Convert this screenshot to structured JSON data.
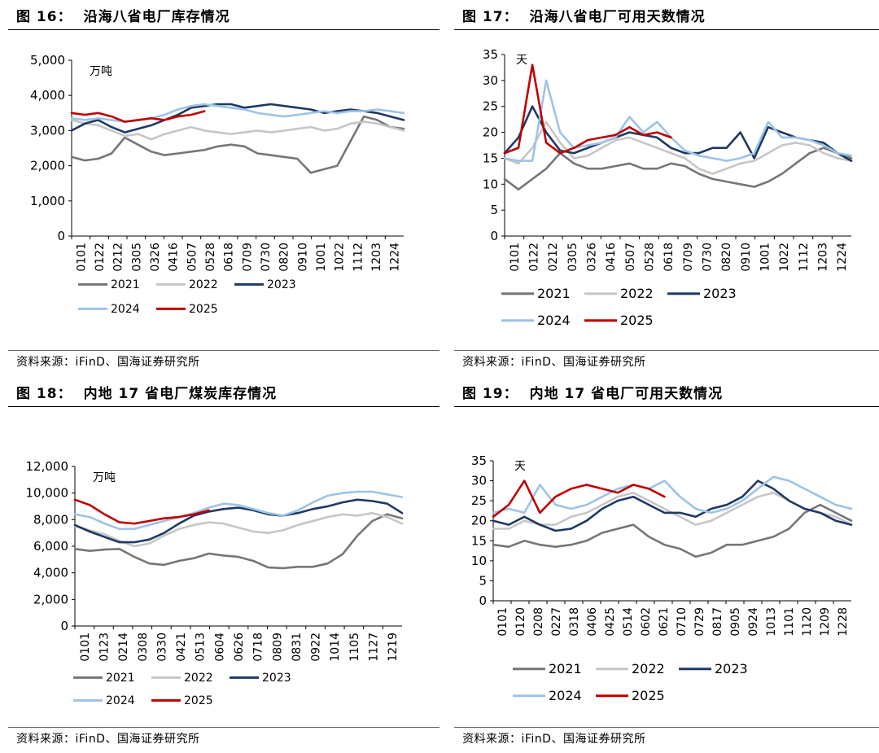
{
  "panels": [
    {
      "title_no": "图 16：",
      "title_text": "沿海八省电厂库存情况",
      "source": "资料来源：iFinD、国海证券研究所",
      "chart_data": {
        "type": "line",
        "unit_label": "万吨",
        "ylim": [
          0,
          5000
        ],
        "y_ticks": [
          0,
          1000,
          2000,
          3000,
          4000,
          5000
        ],
        "y_tick_labels": [
          "0",
          "1,000",
          "2,000",
          "3,000",
          "4,000",
          "5,000"
        ],
        "x_tick_labels": [
          "0101",
          "0122",
          "0212",
          "0305",
          "0326",
          "0416",
          "0507",
          "0528",
          "0618",
          "0709",
          "0730",
          "0820",
          "0910",
          "1001",
          "1022",
          "1112",
          "1203",
          "1224"
        ],
        "series": [
          {
            "name": "2021",
            "color": "#767676",
            "values": [
              2250,
              2150,
              2200,
              2350,
              2800,
              2600,
              2400,
              2300,
              2350,
              2400,
              2450,
              2550,
              2600,
              2550,
              2350,
              2300,
              2250,
              2200,
              1800,
              1900,
              2000,
              2700,
              3400,
              3300,
              3100,
              3050
            ]
          },
          {
            "name": "2022",
            "color": "#c6c6c6",
            "values": [
              3300,
              3200,
              3150,
              3000,
              2850,
              2900,
              2750,
              2900,
              3000,
              3100,
              3000,
              2950,
              2900,
              2950,
              3000,
              2950,
              3000,
              3050,
              3100,
              3000,
              3050,
              3200,
              3250,
              3200,
              3100,
              3000
            ]
          },
          {
            "name": "2023",
            "color": "#1f3864",
            "values": [
              3000,
              3200,
              3300,
              3100,
              2950,
              3050,
              3150,
              3300,
              3450,
              3650,
              3700,
              3750,
              3750,
              3650,
              3700,
              3750,
              3700,
              3650,
              3600,
              3500,
              3550,
              3600,
              3550,
              3500,
              3400,
              3300
            ]
          },
          {
            "name": "2024",
            "color": "#9dc3e6",
            "values": [
              3350,
              3300,
              3350,
              3300,
              3250,
              3300,
              3350,
              3450,
              3600,
              3700,
              3750,
              3700,
              3650,
              3600,
              3500,
              3450,
              3400,
              3450,
              3500,
              3550,
              3500,
              3550,
              3550,
              3600,
              3550,
              3500
            ]
          },
          {
            "name": "2025",
            "color": "#c00000",
            "values": [
              3500,
              3450,
              3500,
              3400,
              3250,
              3300,
              3350,
              3300,
              3400,
              3450,
              3550
            ]
          }
        ]
      }
    },
    {
      "title_no": "图 17：",
      "title_text": "沿海八省电厂可用天数情况",
      "source": "资料来源：iFinD、国海证券研究所",
      "chart_data": {
        "type": "line",
        "unit_label": "天",
        "ylim": [
          0,
          35
        ],
        "y_ticks": [
          0,
          5,
          10,
          15,
          20,
          25,
          30,
          35
        ],
        "y_tick_labels": [
          "0",
          "5",
          "10",
          "15",
          "20",
          "25",
          "30",
          "35"
        ],
        "x_tick_labels": [
          "0101",
          "0122",
          "0212",
          "0305",
          "0326",
          "0416",
          "0507",
          "0528",
          "0618",
          "0709",
          "0730",
          "0820",
          "0910",
          "1001",
          "1022",
          "1112",
          "1203",
          "1224"
        ],
        "series": [
          {
            "name": "2021",
            "color": "#767676",
            "values": [
              11,
              9,
              11,
              13,
              16,
              14,
              13,
              13,
              13.5,
              14,
              13,
              13,
              14,
              13.5,
              12,
              11,
              10.5,
              10,
              9.5,
              10.5,
              12,
              14,
              16,
              17,
              16,
              15
            ]
          },
          {
            "name": "2022",
            "color": "#c6c6c6",
            "values": [
              15,
              14,
              17,
              22,
              18,
              15,
              15.5,
              17,
              18.5,
              19,
              18,
              17,
              16,
              15,
              13,
              12,
              13,
              14,
              14.5,
              16,
              17.5,
              18,
              17.5,
              16,
              15,
              14.5
            ]
          },
          {
            "name": "2023",
            "color": "#1f3864",
            "values": [
              16,
              19,
              25,
              20,
              16.5,
              16,
              17,
              18,
              19,
              20,
              19.5,
              19,
              17,
              16,
              16,
              17,
              17,
              20,
              15,
              21,
              20,
              19,
              18.5,
              18,
              16,
              14.5
            ]
          },
          {
            "name": "2024",
            "color": "#9dc3e6",
            "values": [
              15,
              14.5,
              14.5,
              30,
              20,
              17,
              17.5,
              18,
              19,
              23,
              20,
              22,
              19,
              16.5,
              15.5,
              15,
              14.5,
              15,
              16,
              22,
              19,
              19,
              18.5,
              17.5,
              16,
              15.5
            ]
          },
          {
            "name": "2025",
            "color": "#c00000",
            "values": [
              16,
              17,
              33,
              18,
              16,
              17,
              18.5,
              19,
              19.5,
              21,
              19.5,
              20,
              19
            ]
          }
        ]
      }
    },
    {
      "title_no": "图 18：",
      "title_text": "内地 17 省电厂煤炭库存情况",
      "source": "资料来源：iFinD、国海证券研究所",
      "chart_data": {
        "type": "line",
        "unit_label": "万吨",
        "ylim": [
          0,
          12000
        ],
        "y_ticks": [
          0,
          2000,
          4000,
          6000,
          8000,
          10000,
          12000
        ],
        "y_tick_labels": [
          "0",
          "2,000",
          "4,000",
          "6,000",
          "8,000",
          "10,000",
          "12,000"
        ],
        "x_tick_labels": [
          "0101",
          "0123",
          "0214",
          "0308",
          "0330",
          "0421",
          "0513",
          "0604",
          "0626",
          "0718",
          "0809",
          "0831",
          "0922",
          "1014",
          "1105",
          "1127",
          "1219"
        ],
        "series": [
          {
            "name": "2021",
            "color": "#767676",
            "values": [
              5800,
              5650,
              5750,
              5800,
              5200,
              4700,
              4600,
              4900,
              5100,
              5450,
              5300,
              5200,
              4900,
              4400,
              4350,
              4450,
              4450,
              4700,
              5400,
              6800,
              7900,
              8400,
              8100
            ]
          },
          {
            "name": "2022",
            "color": "#c6c6c6",
            "values": [
              7500,
              7200,
              6900,
              6400,
              6000,
              6200,
              6800,
              7300,
              7600,
              7800,
              7700,
              7400,
              7100,
              7000,
              7200,
              7600,
              7900,
              8200,
              8400,
              8300,
              8500,
              8200,
              7700
            ]
          },
          {
            "name": "2023",
            "color": "#1f3864",
            "values": [
              7600,
              7100,
              6700,
              6300,
              6300,
              6500,
              7000,
              7700,
              8300,
              8600,
              8800,
              8900,
              8700,
              8400,
              8300,
              8500,
              8800,
              9000,
              9300,
              9500,
              9400,
              9200,
              8500
            ]
          },
          {
            "name": "2024",
            "color": "#9dc3e6",
            "values": [
              8400,
              8200,
              7700,
              7300,
              7300,
              7600,
              7900,
              8200,
              8500,
              8900,
              9200,
              9100,
              8800,
              8500,
              8300,
              8700,
              9300,
              9800,
              10000,
              10100,
              10100,
              9900,
              9700
            ]
          },
          {
            "name": "2025",
            "color": "#c00000",
            "values": [
              9500,
              9100,
              8400,
              7800,
              7700,
              7900,
              8100,
              8200,
              8400,
              8700
            ]
          }
        ]
      }
    },
    {
      "title_no": "图 19：",
      "title_text": "内地 17 省电厂可用天数情况",
      "source": "资料来源：iFinD、国海证券研究所",
      "chart_data": {
        "type": "line",
        "unit_label": "天",
        "ylim": [
          0,
          35
        ],
        "y_ticks": [
          0,
          5,
          10,
          15,
          20,
          25,
          30,
          35
        ],
        "y_tick_labels": [
          "0",
          "5",
          "10",
          "15",
          "20",
          "25",
          "30",
          "35"
        ],
        "x_tick_labels": [
          "0101",
          "0120",
          "0208",
          "0227",
          "0318",
          "0406",
          "0425",
          "0514",
          "0602",
          "0621",
          "0710",
          "0729",
          "0817",
          "0905",
          "0924",
          "1013",
          "1101",
          "1120",
          "1209",
          "1228"
        ],
        "series": [
          {
            "name": "2021",
            "color": "#767676",
            "values": [
              14,
              13.5,
              15,
              14,
              13.5,
              14,
              15,
              17,
              18,
              19,
              16,
              14,
              13,
              11,
              12,
              14,
              14,
              15,
              16,
              18,
              22,
              24,
              22,
              20
            ]
          },
          {
            "name": "2022",
            "color": "#c6c6c6",
            "values": [
              18,
              18,
              20,
              19,
              19,
              21,
              22,
              24,
              26,
              27,
              25,
              23,
              21,
              19,
              20,
              22,
              24,
              26,
              27,
              25,
              23,
              22,
              21,
              19
            ]
          },
          {
            "name": "2023",
            "color": "#1f3864",
            "values": [
              20,
              19,
              21,
              19,
              17.5,
              18,
              20,
              23,
              25,
              26,
              24,
              22,
              22,
              21,
              23,
              24,
              26,
              30,
              28,
              25,
              23,
              22,
              20,
              19
            ]
          },
          {
            "name": "2024",
            "color": "#9dc3e6",
            "values": [
              22,
              23,
              22,
              29,
              24,
              23,
              24,
              26,
              28,
              29,
              28,
              30,
              26,
              23,
              22,
              23,
              25,
              28,
              31,
              30,
              28,
              26,
              24,
              23
            ]
          },
          {
            "name": "2025",
            "color": "#c00000",
            "values": [
              21,
              24,
              30,
              22,
              26,
              28,
              29,
              28,
              27,
              29,
              28,
              26
            ]
          }
        ]
      }
    }
  ]
}
